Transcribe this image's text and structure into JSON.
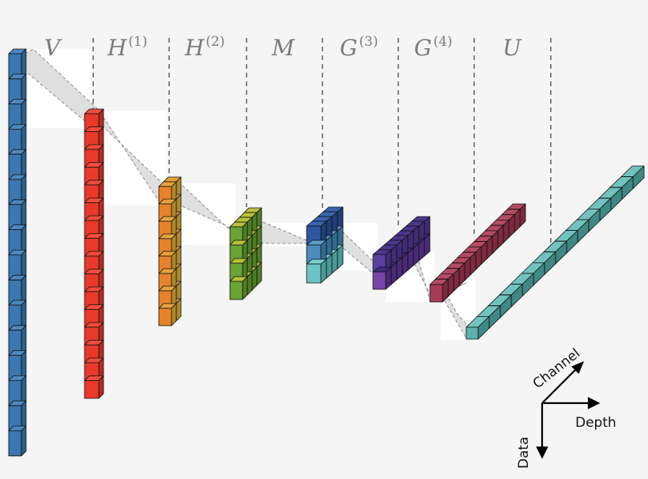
{
  "stages": [
    {
      "id": "v",
      "name": "V",
      "sup": "",
      "color": "#3b77b0",
      "shade": "#2d5f8c",
      "top": "#4b88c2"
    },
    {
      "id": "h1",
      "name": "H",
      "sup": "(1)",
      "color": "#e8392a",
      "shade": "#b92b1e",
      "top": "#f04a3b"
    },
    {
      "id": "h2",
      "name": "H",
      "sup": "(2)",
      "color": "#e8822a",
      "shade": "#b08a2a",
      "top": "#e6a33a"
    },
    {
      "id": "m",
      "name": "M",
      "sup": "",
      "color": "#6aa336",
      "shade": "#4f7d24",
      "top": "#b7c23a"
    },
    {
      "id": "g3",
      "name": "G",
      "sup": "(3)",
      "color": "#5a3fa0",
      "shade": "#3f2c75",
      "top": "#4c368c"
    },
    {
      "id": "g4",
      "name": "G",
      "sup": "(4)",
      "color": "#a83a55",
      "shade": "#7e2a40",
      "top": "#b54a62"
    },
    {
      "id": "u",
      "name": "U",
      "sup": "",
      "color": "#5fb2ae",
      "shade": "#3f8884",
      "top": "#72c2be"
    }
  ],
  "m_colors": {
    "row1": "#2d57a0",
    "row2": "#4b8cb8",
    "row3": "#6cc4c4"
  },
  "axes": {
    "channel": "Channel",
    "depth": "Depth",
    "data": "Data"
  }
}
